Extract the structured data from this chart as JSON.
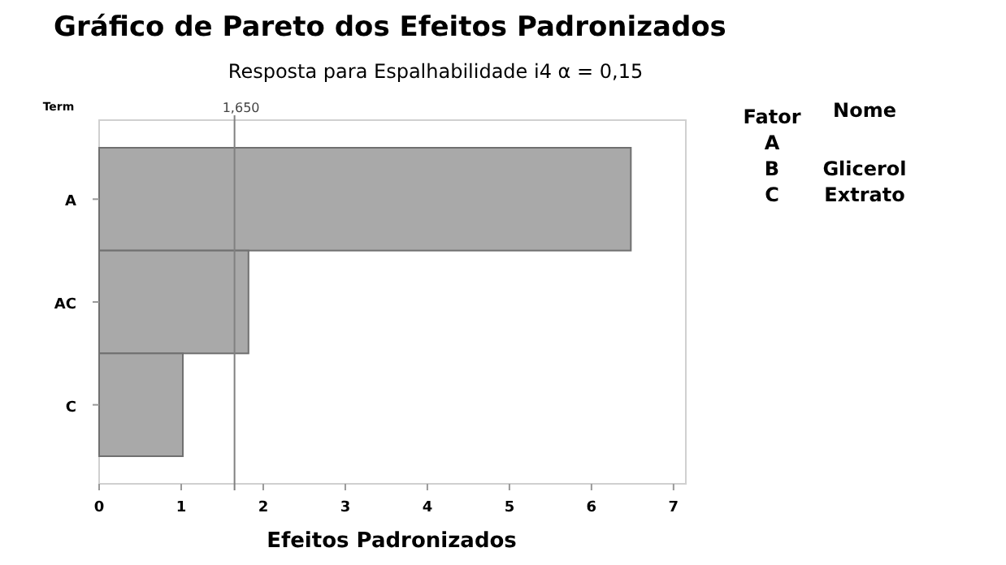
{
  "chart_data": {
    "type": "bar",
    "orientation": "horizontal",
    "title": "Gráfico de Pareto dos Efeitos Padronizados",
    "subtitle": "Resposta para Espalhabilidade i4  α = 0,15",
    "ylabel": "Term",
    "xlabel": "Efeitos Padronizados",
    "categories": [
      "A",
      "AC",
      "C"
    ],
    "values": [
      6.48,
      1.82,
      1.02
    ],
    "color": "#a9a9a9",
    "xlim": [
      0,
      7.15
    ],
    "xticks": [
      0,
      1,
      2,
      3,
      4,
      5,
      6,
      7
    ],
    "ref_lines": [
      {
        "axis": "x",
        "value": 1.65,
        "label": "1,650",
        "color": "#808080"
      }
    ],
    "annotations": [
      "Fator Nome",
      "A",
      "B Glicerol",
      "C Extrato"
    ],
    "grid": false
  }
}
